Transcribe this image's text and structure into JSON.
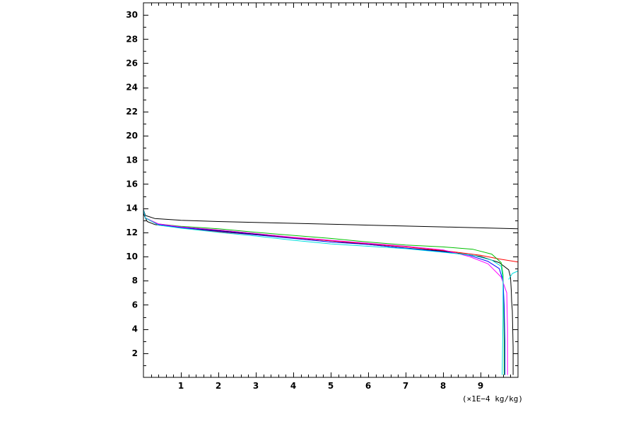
{
  "chart_data": {
    "type": "line",
    "title": "",
    "xlabel": "(×1E−4 kg/kg)",
    "ylabel": "",
    "xlim": [
      0,
      10
    ],
    "ylim": [
      0,
      31
    ],
    "grid": false,
    "legend": "none",
    "x_ticks": [
      1,
      2,
      3,
      4,
      5,
      6,
      7,
      8,
      9
    ],
    "y_ticks": [
      2,
      4,
      6,
      8,
      10,
      12,
      14,
      16,
      18,
      20,
      22,
      24,
      26,
      28,
      30
    ],
    "series": [
      {
        "color": "#000000",
        "points": [
          [
            9.87,
            0.2
          ],
          [
            9.87,
            2.5
          ],
          [
            9.85,
            5.5
          ],
          [
            9.83,
            6.3
          ],
          [
            9.82,
            7.2
          ],
          [
            9.8,
            8.3
          ],
          [
            9.75,
            8.9
          ],
          [
            9.5,
            9.5
          ],
          [
            9.0,
            10.0
          ],
          [
            8.0,
            10.45
          ],
          [
            7.0,
            10.7
          ],
          [
            6.0,
            11.0
          ],
          [
            5.0,
            11.3
          ],
          [
            4.0,
            11.55
          ],
          [
            3.0,
            11.85
          ],
          [
            2.0,
            12.15
          ],
          [
            1.0,
            12.4
          ],
          [
            0.3,
            12.65
          ],
          [
            0.1,
            12.9
          ],
          [
            0.02,
            13.4
          ],
          [
            0.0,
            13.9
          ]
        ]
      },
      {
        "color": "#000000",
        "points": [
          [
            0.0,
            13.9
          ],
          [
            0.05,
            13.4
          ],
          [
            0.3,
            13.15
          ],
          [
            1.0,
            13.0
          ],
          [
            2.0,
            12.9
          ],
          [
            4.0,
            12.75
          ],
          [
            6.0,
            12.6
          ],
          [
            8.0,
            12.45
          ],
          [
            10.0,
            12.3
          ]
        ]
      },
      {
        "color": "#ff0000",
        "points": [
          [
            0.0,
            13.9
          ],
          [
            0.05,
            13.2
          ],
          [
            0.4,
            12.6
          ],
          [
            1.0,
            12.4
          ],
          [
            2.0,
            12.05
          ],
          [
            3.0,
            11.8
          ],
          [
            4.0,
            11.55
          ],
          [
            5.0,
            11.3
          ],
          [
            6.0,
            11.05
          ],
          [
            7.0,
            10.8
          ],
          [
            8.0,
            10.5
          ],
          [
            9.0,
            10.1
          ],
          [
            9.5,
            9.8
          ],
          [
            10.0,
            9.55
          ]
        ]
      },
      {
        "color": "#00c000",
        "points": [
          [
            0.0,
            13.9
          ],
          [
            0.05,
            13.2
          ],
          [
            0.4,
            12.7
          ],
          [
            1.0,
            12.5
          ],
          [
            2.0,
            12.3
          ],
          [
            3.0,
            12.0
          ],
          [
            4.0,
            11.75
          ],
          [
            5.0,
            11.5
          ],
          [
            6.0,
            11.2
          ],
          [
            7.0,
            10.95
          ],
          [
            8.0,
            10.8
          ],
          [
            8.8,
            10.6
          ],
          [
            9.3,
            10.2
          ],
          [
            9.55,
            9.5
          ],
          [
            9.6,
            8.5
          ],
          [
            9.62,
            6.0
          ],
          [
            9.63,
            3.0
          ],
          [
            9.63,
            0.2
          ]
        ]
      },
      {
        "color": "#0000ff",
        "points": [
          [
            0.0,
            13.9
          ],
          [
            0.05,
            13.2
          ],
          [
            0.4,
            12.65
          ],
          [
            1.0,
            12.4
          ],
          [
            2.0,
            12.1
          ],
          [
            3.0,
            11.8
          ],
          [
            4.0,
            11.5
          ],
          [
            5.0,
            11.2
          ],
          [
            6.0,
            11.0
          ],
          [
            7.0,
            10.7
          ],
          [
            8.0,
            10.4
          ],
          [
            8.7,
            10.1
          ],
          [
            9.2,
            9.6
          ],
          [
            9.5,
            9.0
          ],
          [
            9.6,
            8.0
          ],
          [
            9.63,
            6.0
          ],
          [
            9.65,
            3.0
          ],
          [
            9.65,
            0.2
          ]
        ]
      },
      {
        "color": "#ff00ff",
        "points": [
          [
            0.0,
            13.9
          ],
          [
            0.05,
            13.2
          ],
          [
            0.4,
            12.7
          ],
          [
            1.0,
            12.45
          ],
          [
            2.0,
            12.2
          ],
          [
            3.0,
            11.9
          ],
          [
            4.0,
            11.6
          ],
          [
            5.0,
            11.35
          ],
          [
            6.0,
            11.1
          ],
          [
            7.0,
            10.85
          ],
          [
            8.0,
            10.55
          ],
          [
            8.7,
            10.0
          ],
          [
            9.2,
            9.4
          ],
          [
            9.55,
            8.3
          ],
          [
            9.7,
            7.0
          ],
          [
            9.72,
            4.0
          ],
          [
            9.72,
            0.2
          ]
        ]
      },
      {
        "color": "#00dddd",
        "points": [
          [
            0.0,
            31.0
          ],
          [
            0.0,
            13.9
          ],
          [
            0.05,
            13.2
          ],
          [
            0.4,
            12.6
          ],
          [
            1.0,
            12.35
          ],
          [
            2.0,
            12.0
          ],
          [
            3.0,
            11.7
          ],
          [
            4.0,
            11.35
          ],
          [
            5.0,
            11.05
          ],
          [
            6.0,
            10.85
          ],
          [
            7.0,
            10.65
          ],
          [
            8.0,
            10.35
          ],
          [
            8.8,
            10.1
          ],
          [
            9.3,
            9.7
          ],
          [
            9.55,
            9.2
          ],
          [
            9.6,
            8.0
          ],
          [
            9.6,
            5.0
          ],
          [
            9.58,
            0.2
          ]
        ]
      },
      {
        "color": "#00dddd",
        "points": [
          [
            9.75,
            8.1
          ],
          [
            9.85,
            8.6
          ],
          [
            10.0,
            8.8
          ]
        ]
      }
    ]
  }
}
